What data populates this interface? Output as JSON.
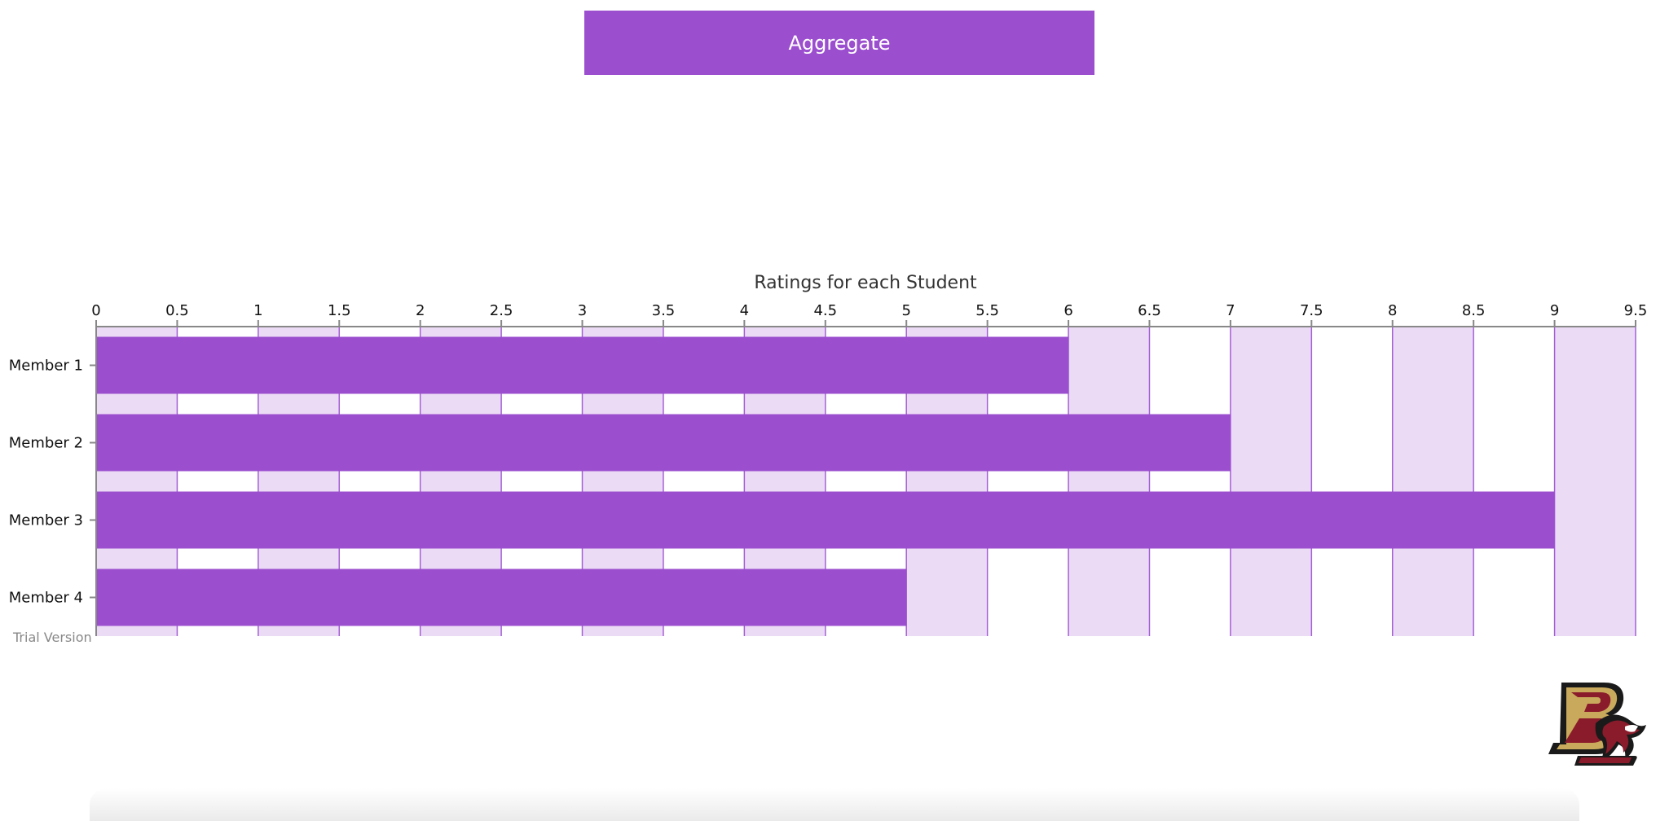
{
  "toolbar": {
    "aggregate_label": "Aggregate"
  },
  "watermark": "Trial Version",
  "logo": {
    "name": "boston-college-eagle-logo",
    "text": "BC",
    "primary_color": "#8a1b2b",
    "secondary_color": "#c9a95b"
  },
  "colors": {
    "bar": "#9b4fcf",
    "band_shaded": "#ecdbf5",
    "band_plain": "#ffffff",
    "gridline": "#a45fd6",
    "button": "#9b4fcf"
  },
  "chart_data": {
    "type": "bar",
    "orientation": "horizontal",
    "title": "Ratings for each Student",
    "categories": [
      "Member 1",
      "Member 2",
      "Member 3",
      "Member 4"
    ],
    "values": [
      6,
      7,
      9,
      5
    ],
    "xlim": [
      0,
      9.5
    ],
    "x_tick_step": 0.5,
    "x_tick_labels": [
      "0",
      "0.5",
      "1",
      "1.5",
      "2",
      "2.5",
      "3",
      "3.5",
      "4",
      "4.5",
      "5",
      "5.5",
      "6",
      "6.5",
      "7",
      "7.5",
      "8",
      "8.5",
      "9",
      "9.5"
    ],
    "x_axis_position": "top",
    "grid": true,
    "alternating_bands": true,
    "legend": "none"
  }
}
